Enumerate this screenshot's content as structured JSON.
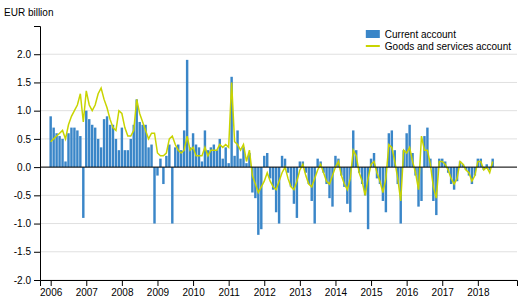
{
  "chart_data": {
    "type": "bar",
    "ylabel": "EUR billion",
    "x": [
      2006,
      2006.083333333333,
      2006.166666666667,
      2006.25,
      2006.333333333333,
      2006.416666666667,
      2006.5,
      2006.583333333333,
      2006.666666666667,
      2006.75,
      2006.833333333333,
      2006.916666666667,
      2007,
      2007.083333333333,
      2007.166666666667,
      2007.25,
      2007.333333333333,
      2007.416666666667,
      2007.5,
      2007.583333333333,
      2007.666666666667,
      2007.75,
      2007.833333333333,
      2007.916666666667,
      2008,
      2008.083333333333,
      2008.166666666667,
      2008.25,
      2008.333333333333,
      2008.416666666667,
      2008.5,
      2008.583333333333,
      2008.666666666667,
      2008.75,
      2008.833333333333,
      2008.916666666667,
      2009,
      2009.083333333333,
      2009.166666666667,
      2009.25,
      2009.333333333333,
      2009.416666666667,
      2009.5,
      2009.583333333333,
      2009.666666666667,
      2009.75,
      2009.833333333333,
      2009.916666666667,
      2010,
      2010.083333333333,
      2010.166666666667,
      2010.25,
      2010.333333333333,
      2010.416666666667,
      2010.5,
      2010.583333333333,
      2010.666666666667,
      2010.75,
      2010.833333333333,
      2010.916666666667,
      2011,
      2011.083333333333,
      2011.166666666667,
      2011.25,
      2011.333333333333,
      2011.416666666667,
      2011.5,
      2011.583333333333,
      2011.666666666667,
      2011.75,
      2011.833333333333,
      2011.916666666667,
      2012,
      2012.083333333333,
      2012.166666666667,
      2012.25,
      2012.333333333333,
      2012.416666666667,
      2012.5,
      2012.583333333333,
      2012.666666666667,
      2012.75,
      2012.833333333333,
      2012.916666666667,
      2013,
      2013.083333333333,
      2013.166666666667,
      2013.25,
      2013.333333333333,
      2013.416666666667,
      2013.5,
      2013.583333333333,
      2013.666666666667,
      2013.75,
      2013.833333333333,
      2013.916666666667,
      2014,
      2014.083333333333,
      2014.166666666667,
      2014.25,
      2014.333333333333,
      2014.416666666667,
      2014.5,
      2014.583333333333,
      2014.666666666667,
      2014.75,
      2014.833333333333,
      2014.916666666667,
      2015,
      2015.083333333333,
      2015.166666666667,
      2015.25,
      2015.333333333333,
      2015.416666666667,
      2015.5,
      2015.583333333333,
      2015.666666666667,
      2015.75,
      2015.833333333333,
      2015.916666666667,
      2016,
      2016.083333333333,
      2016.166666666667,
      2016.25,
      2016.333333333333,
      2016.416666666667,
      2016.5,
      2016.583333333333,
      2016.666666666667,
      2016.75,
      2016.833333333333,
      2016.916666666667,
      2017,
      2017.083333333333,
      2017.166666666667,
      2017.25,
      2017.333333333333,
      2017.416666666667,
      2017.5,
      2017.583333333333,
      2017.666666666667,
      2017.75,
      2017.833333333333,
      2017.916666666667,
      2018,
      2018.083333333333,
      2018.166666666667,
      2018.25,
      2018.333333333333,
      2018.416666666667
    ],
    "series": [
      {
        "name": "Current account",
        "type": "bar",
        "color": "#3a86c8",
        "values": [
          0.9,
          0.7,
          0.6,
          0.55,
          0.5,
          0.1,
          0.6,
          0.7,
          0.7,
          0.65,
          0.55,
          -0.9,
          1.0,
          0.85,
          0.75,
          0.7,
          0.5,
          0.35,
          0.85,
          0.9,
          0.75,
          0.75,
          0.5,
          0.3,
          0.7,
          0.3,
          0.3,
          0.5,
          0.75,
          1.2,
          0.8,
          0.75,
          0.75,
          0.35,
          0.4,
          -1.0,
          -0.15,
          0.15,
          -0.3,
          0.2,
          0.4,
          -1.0,
          0.35,
          0.4,
          0.3,
          0.65,
          1.9,
          0.35,
          0.6,
          0.4,
          0.35,
          0.1,
          0.65,
          0.3,
          0.35,
          0.4,
          0.3,
          0.5,
          0.15,
          0.35,
          0.07,
          1.6,
          0.2,
          0.65,
          0.15,
          0.35,
          0.07,
          0.25,
          -0.45,
          -0.55,
          -1.2,
          -1.1,
          0.2,
          0.25,
          -0.2,
          -0.4,
          -0.8,
          -1.0,
          0.2,
          0.15,
          -0.1,
          -0.35,
          -0.65,
          -0.9,
          0.1,
          0.1,
          -0.1,
          -0.3,
          -0.6,
          -1.0,
          0.15,
          0.1,
          -0.1,
          -0.3,
          -0.55,
          -0.7,
          0.2,
          0.15,
          -0.15,
          -0.35,
          -0.65,
          -0.8,
          0.65,
          0.3,
          -0.1,
          -0.3,
          -0.5,
          -1.1,
          0.15,
          0.25,
          -0.2,
          -0.3,
          -0.6,
          -0.8,
          0.6,
          0.65,
          0.3,
          -0.3,
          -1.0,
          0.3,
          0.6,
          0.75,
          0.25,
          -0.15,
          -0.7,
          -0.6,
          0.55,
          0.7,
          0.15,
          -0.6,
          -0.85,
          0.15,
          0.15,
          0.1,
          -0.1,
          -0.3,
          -0.4,
          -0.25,
          0.1,
          0.05,
          -0.05,
          -0.15,
          -0.3,
          -0.15,
          0.15,
          0.15,
          -0.05,
          0.05,
          -0.05,
          0.15
        ]
      },
      {
        "name": "Goods and services account",
        "type": "line",
        "color": "#c8d400",
        "values": [
          0.45,
          0.5,
          0.55,
          0.6,
          0.65,
          0.5,
          0.75,
          0.9,
          1.0,
          1.1,
          1.3,
          0.8,
          1.35,
          1.1,
          1.0,
          1.1,
          1.3,
          1.4,
          1.2,
          1.05,
          0.85,
          0.7,
          0.65,
          1.0,
          0.95,
          0.7,
          0.55,
          0.55,
          0.65,
          1.2,
          0.95,
          0.8,
          0.65,
          0.5,
          0.6,
          0.6,
          0.25,
          0.2,
          0.2,
          0.25,
          0.5,
          0.55,
          0.4,
          0.3,
          0.25,
          0.3,
          0.55,
          0.3,
          0.35,
          0.2,
          0.2,
          0.2,
          0.35,
          0.2,
          0.3,
          0.3,
          0.3,
          0.4,
          0.35,
          0.4,
          0.35,
          1.5,
          0.45,
          0.4,
          0.3,
          0.4,
          0.1,
          0.3,
          -0.15,
          -0.3,
          -0.45,
          -0.35,
          -0.25,
          -0.1,
          -0.25,
          -0.35,
          -0.4,
          -0.25,
          -0.1,
          0.0,
          -0.2,
          -0.35,
          -0.4,
          -0.25,
          -0.05,
          0.05,
          -0.15,
          -0.3,
          -0.35,
          -0.2,
          -0.05,
          0.05,
          -0.1,
          -0.25,
          -0.3,
          -0.15,
          0.0,
          0.1,
          -0.15,
          -0.3,
          -0.4,
          -0.2,
          0.3,
          0.2,
          -0.1,
          -0.25,
          -0.5,
          -0.2,
          0.05,
          0.1,
          -0.1,
          -0.25,
          -0.45,
          -0.2,
          0.4,
          0.35,
          0.1,
          -0.2,
          -0.6,
          0.3,
          0.25,
          0.35,
          0.1,
          -0.1,
          -0.4,
          0.55,
          0.3,
          0.3,
          0.05,
          -0.35,
          -0.55,
          0.1,
          0.1,
          0.05,
          -0.05,
          -0.2,
          -0.3,
          -0.2,
          0.1,
          0.05,
          -0.05,
          -0.1,
          -0.25,
          -0.15,
          0.1,
          0.1,
          -0.05,
          0.0,
          -0.1,
          0.1
        ]
      }
    ],
    "xlim": [
      2005.7,
      2019.1
    ],
    "xticks": [
      2006,
      2007,
      2008,
      2009,
      2010,
      2011,
      2012,
      2013,
      2014,
      2015,
      2016,
      2017,
      2018
    ],
    "ylim": [
      -2.0,
      2.5
    ],
    "yticks": [
      {
        "value": -2.0,
        "label": "-2.0"
      },
      {
        "value": -1.5,
        "label": "-1.5"
      },
      {
        "value": -1.0,
        "label": "-1.0"
      },
      {
        "value": -0.5,
        "label": "-0.5"
      },
      {
        "value": 0.0,
        "label": "0.0"
      },
      {
        "value": 0.5,
        "label": "0.5"
      },
      {
        "value": 1.0,
        "label": "1.0"
      },
      {
        "value": 1.5,
        "label": "1.5"
      },
      {
        "value": 2.0,
        "label": "2.0"
      }
    ],
    "grid": "y",
    "legend": "upper right"
  }
}
